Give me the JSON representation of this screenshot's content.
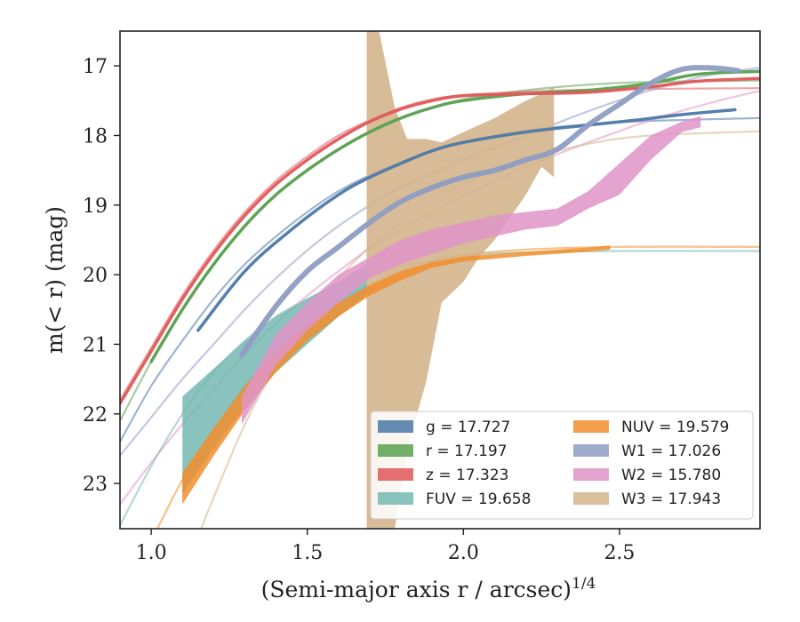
{
  "chart_data": {
    "type": "line",
    "xlabel": "(Semi-major axis r / arcsec)",
    "xlabel_exponent": "1/4",
    "ylabel": "m(< r) (mag)",
    "xlim": [
      0.9,
      2.95
    ],
    "ylim": [
      23.65,
      16.5
    ],
    "y_inverted": true,
    "grid": false,
    "legend_position": "lower-right",
    "x_ticks": [
      "1.0",
      "1.5",
      "2.0",
      "2.5"
    ],
    "y_ticks": [
      "17",
      "18",
      "19",
      "20",
      "21",
      "22",
      "23"
    ],
    "series": [
      {
        "name": "g = 17.727",
        "color": "#4C78A8",
        "width": 3.5,
        "data": [
          [
            1.15,
            20.8
          ],
          [
            1.3,
            19.95
          ],
          [
            1.45,
            19.35
          ],
          [
            1.6,
            18.85
          ],
          [
            1.7,
            18.6
          ],
          [
            1.8,
            18.4
          ],
          [
            1.9,
            18.22
          ],
          [
            2.0,
            18.1
          ],
          [
            2.2,
            17.95
          ],
          [
            2.4,
            17.85
          ],
          [
            2.55,
            17.78
          ],
          [
            2.7,
            17.7
          ],
          [
            2.87,
            17.63
          ]
        ],
        "model": [
          [
            0.9,
            22.4
          ],
          [
            1.0,
            21.6
          ],
          [
            1.1,
            20.95
          ],
          [
            1.2,
            20.35
          ],
          [
            1.3,
            19.85
          ],
          [
            1.4,
            19.45
          ],
          [
            1.5,
            19.1
          ],
          [
            1.6,
            18.8
          ],
          [
            1.7,
            18.57
          ],
          [
            1.8,
            18.38
          ],
          [
            1.9,
            18.23
          ],
          [
            2.0,
            18.1
          ],
          [
            2.2,
            17.93
          ],
          [
            2.4,
            17.84
          ],
          [
            2.6,
            17.79
          ],
          [
            2.95,
            17.75
          ]
        ]
      },
      {
        "name": "r = 17.197",
        "color": "#59A14F",
        "width": 3.5,
        "data": [
          [
            1.0,
            21.25
          ],
          [
            1.1,
            20.5
          ],
          [
            1.2,
            19.85
          ],
          [
            1.3,
            19.3
          ],
          [
            1.4,
            18.85
          ],
          [
            1.5,
            18.5
          ],
          [
            1.6,
            18.2
          ],
          [
            1.7,
            17.95
          ],
          [
            1.8,
            17.75
          ],
          [
            1.9,
            17.6
          ],
          [
            2.0,
            17.5
          ],
          [
            2.2,
            17.4
          ],
          [
            2.4,
            17.35
          ],
          [
            2.6,
            17.25
          ],
          [
            2.75,
            17.12
          ],
          [
            2.95,
            17.08
          ]
        ],
        "model": [
          [
            0.9,
            22.1
          ],
          [
            1.0,
            21.25
          ],
          [
            1.1,
            20.5
          ],
          [
            1.2,
            19.85
          ],
          [
            1.3,
            19.3
          ],
          [
            1.4,
            18.85
          ],
          [
            1.5,
            18.5
          ],
          [
            1.6,
            18.2
          ],
          [
            1.7,
            17.95
          ],
          [
            1.8,
            17.75
          ],
          [
            1.9,
            17.6
          ],
          [
            2.0,
            17.48
          ],
          [
            2.2,
            17.35
          ],
          [
            2.4,
            17.27
          ],
          [
            2.6,
            17.23
          ],
          [
            2.95,
            17.21
          ]
        ]
      },
      {
        "name": "z = 17.323",
        "color": "#E15759",
        "width": 3.5,
        "data": [
          [
            0.9,
            21.85
          ],
          [
            1.0,
            21.1
          ],
          [
            1.1,
            20.35
          ],
          [
            1.2,
            19.7
          ],
          [
            1.3,
            19.15
          ],
          [
            1.4,
            18.7
          ],
          [
            1.5,
            18.35
          ],
          [
            1.6,
            18.05
          ],
          [
            1.7,
            17.8
          ],
          [
            1.8,
            17.62
          ],
          [
            1.9,
            17.5
          ],
          [
            2.0,
            17.43
          ],
          [
            2.2,
            17.4
          ],
          [
            2.4,
            17.38
          ],
          [
            2.6,
            17.3
          ],
          [
            2.75,
            17.22
          ],
          [
            2.95,
            17.18
          ]
        ],
        "model": [
          [
            0.9,
            21.8
          ],
          [
            1.0,
            21.05
          ],
          [
            1.1,
            20.3
          ],
          [
            1.2,
            19.65
          ],
          [
            1.3,
            19.1
          ],
          [
            1.4,
            18.65
          ],
          [
            1.5,
            18.3
          ],
          [
            1.6,
            18.0
          ],
          [
            1.7,
            17.78
          ],
          [
            1.8,
            17.6
          ],
          [
            1.9,
            17.48
          ],
          [
            2.0,
            17.42
          ],
          [
            2.2,
            17.37
          ],
          [
            2.4,
            17.34
          ],
          [
            2.6,
            17.33
          ],
          [
            2.95,
            17.32
          ]
        ]
      },
      {
        "name": "FUV = 19.658",
        "color": "#76B7B2",
        "band": [
          [
            1.1,
            21.75,
            23.15
          ],
          [
            1.2,
            21.35,
            22.5
          ],
          [
            1.3,
            20.95,
            21.9
          ],
          [
            1.4,
            20.6,
            21.4
          ],
          [
            1.5,
            20.35,
            21.0
          ],
          [
            1.6,
            20.1,
            20.6
          ],
          [
            1.69,
            19.85,
            20.3
          ]
        ],
        "model": [
          [
            0.9,
            23.6
          ],
          [
            1.0,
            22.75
          ],
          [
            1.1,
            22.0
          ],
          [
            1.2,
            21.4
          ],
          [
            1.3,
            20.95
          ],
          [
            1.4,
            20.6
          ],
          [
            1.5,
            20.35
          ],
          [
            1.6,
            20.15
          ],
          [
            1.7,
            20.0
          ],
          [
            1.8,
            19.88
          ],
          [
            1.9,
            19.8
          ],
          [
            2.0,
            19.72
          ],
          [
            2.2,
            19.68
          ],
          [
            2.5,
            19.66
          ],
          [
            2.95,
            19.66
          ]
        ]
      },
      {
        "name": "NUV = 19.579",
        "color": "#F28E2B",
        "band": [
          [
            1.1,
            22.85,
            23.3
          ],
          [
            1.2,
            22.2,
            22.6
          ],
          [
            1.3,
            21.6,
            21.95
          ],
          [
            1.4,
            21.1,
            21.4
          ],
          [
            1.5,
            20.7,
            20.95
          ],
          [
            1.6,
            20.4,
            20.6
          ],
          [
            1.7,
            20.15,
            20.3
          ],
          [
            1.8,
            19.95,
            20.08
          ],
          [
            1.9,
            19.82,
            19.9
          ],
          [
            2.0,
            19.74,
            19.81
          ],
          [
            2.2,
            19.67,
            19.73
          ],
          [
            2.4,
            19.61,
            19.67
          ],
          [
            2.47,
            19.58,
            19.64
          ]
        ],
        "model": [
          [
            1.02,
            23.65
          ],
          [
            1.1,
            22.95
          ],
          [
            1.2,
            22.25
          ],
          [
            1.3,
            21.6
          ],
          [
            1.4,
            21.1
          ],
          [
            1.5,
            20.7
          ],
          [
            1.6,
            20.4
          ],
          [
            1.7,
            20.15
          ],
          [
            1.8,
            19.95
          ],
          [
            1.9,
            19.82
          ],
          [
            2.0,
            19.72
          ],
          [
            2.2,
            19.64
          ],
          [
            2.5,
            19.6
          ],
          [
            2.95,
            19.6
          ]
        ]
      },
      {
        "name": "W1 = 17.026",
        "color": "#8E9DC3",
        "width": 6,
        "data": [
          [
            1.29,
            21.15
          ],
          [
            1.4,
            20.45
          ],
          [
            1.5,
            19.95
          ],
          [
            1.6,
            19.6
          ],
          [
            1.7,
            19.25
          ],
          [
            1.8,
            18.95
          ],
          [
            1.9,
            18.75
          ],
          [
            2.0,
            18.6
          ],
          [
            2.1,
            18.5
          ],
          [
            2.2,
            18.35
          ],
          [
            2.3,
            18.2
          ],
          [
            2.4,
            17.85
          ],
          [
            2.5,
            17.55
          ],
          [
            2.6,
            17.25
          ],
          [
            2.7,
            17.05
          ],
          [
            2.8,
            17.03
          ],
          [
            2.88,
            17.07
          ]
        ],
        "model": [
          [
            0.9,
            22.6
          ],
          [
            1.0,
            22.05
          ],
          [
            1.1,
            21.5
          ],
          [
            1.2,
            21.0
          ],
          [
            1.3,
            20.5
          ],
          [
            1.4,
            20.05
          ],
          [
            1.5,
            19.65
          ],
          [
            1.6,
            19.3
          ],
          [
            1.7,
            19.0
          ],
          [
            1.8,
            18.75
          ],
          [
            1.9,
            18.55
          ],
          [
            2.0,
            18.35
          ],
          [
            2.2,
            18.0
          ],
          [
            2.4,
            17.65
          ],
          [
            2.6,
            17.35
          ],
          [
            2.8,
            17.12
          ],
          [
            2.95,
            17.03
          ]
        ]
      },
      {
        "name": "W2 = 15.780",
        "color": "#E194C8",
        "band": [
          [
            1.29,
            21.75,
            22.15
          ],
          [
            1.4,
            20.85,
            21.3
          ],
          [
            1.5,
            20.4,
            20.8
          ],
          [
            1.6,
            20.0,
            20.4
          ],
          [
            1.7,
            19.75,
            20.05
          ],
          [
            1.8,
            19.5,
            19.85
          ],
          [
            1.9,
            19.35,
            19.7
          ],
          [
            2.0,
            19.25,
            19.55
          ],
          [
            2.1,
            19.15,
            19.45
          ],
          [
            2.2,
            19.1,
            19.35
          ],
          [
            2.3,
            19.05,
            19.3
          ],
          [
            2.4,
            18.8,
            19.05
          ],
          [
            2.5,
            18.4,
            18.85
          ],
          [
            2.6,
            18.0,
            18.35
          ],
          [
            2.7,
            17.8,
            17.95
          ],
          [
            2.76,
            17.72,
            17.88
          ]
        ],
        "model": [
          [
            0.9,
            23.3
          ],
          [
            1.0,
            22.7
          ],
          [
            1.1,
            22.15
          ],
          [
            1.2,
            21.65
          ],
          [
            1.3,
            21.15
          ],
          [
            1.4,
            20.7
          ],
          [
            1.5,
            20.3
          ],
          [
            1.6,
            19.95
          ],
          [
            1.7,
            19.62
          ],
          [
            1.8,
            19.35
          ],
          [
            1.9,
            19.1
          ],
          [
            2.0,
            18.87
          ],
          [
            2.2,
            18.45
          ],
          [
            2.4,
            18.1
          ],
          [
            2.6,
            17.78
          ],
          [
            2.8,
            17.52
          ],
          [
            2.95,
            17.36
          ]
        ]
      },
      {
        "name": "W3 = 17.943",
        "color": "#D4B48C",
        "band": [
          [
            1.69,
            16.5,
            23.65
          ],
          [
            1.73,
            16.5,
            23.65
          ],
          [
            1.78,
            17.6,
            23.65
          ],
          [
            1.82,
            18.05,
            22.5
          ],
          [
            1.88,
            18.05,
            21.55
          ],
          [
            1.93,
            18.1,
            20.4
          ],
          [
            2.0,
            17.95,
            20.1
          ],
          [
            2.05,
            17.85,
            19.75
          ],
          [
            2.1,
            17.75,
            19.5
          ],
          [
            2.2,
            17.5,
            18.85
          ],
          [
            2.25,
            17.4,
            18.45
          ],
          [
            2.29,
            17.3,
            18.6
          ]
        ],
        "model": [
          [
            1.16,
            23.65
          ],
          [
            1.2,
            23.2
          ],
          [
            1.3,
            22.15
          ],
          [
            1.4,
            21.3
          ],
          [
            1.5,
            20.6
          ],
          [
            1.6,
            20.05
          ],
          [
            1.7,
            19.6
          ],
          [
            1.8,
            19.25
          ],
          [
            1.9,
            18.95
          ],
          [
            2.0,
            18.7
          ],
          [
            2.2,
            18.35
          ],
          [
            2.4,
            18.12
          ],
          [
            2.6,
            18.0
          ],
          [
            2.95,
            17.94
          ]
        ]
      }
    ]
  }
}
